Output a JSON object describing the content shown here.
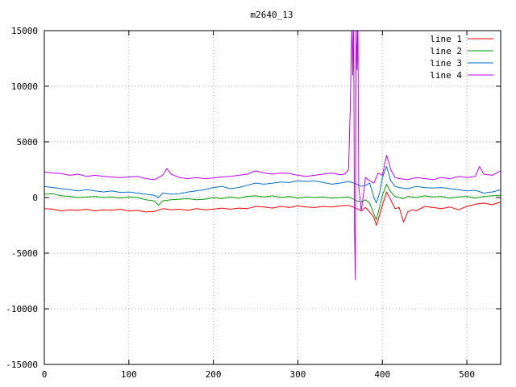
{
  "chart_data": {
    "type": "line",
    "title": "m2640_13",
    "xlabel": "",
    "ylabel": "",
    "xlim": [
      0,
      540
    ],
    "ylim": [
      -15000,
      15000
    ],
    "x_ticks": [
      0,
      100,
      200,
      300,
      400,
      500
    ],
    "y_ticks": [
      -15000,
      -10000,
      -5000,
      0,
      5000,
      10000,
      15000
    ],
    "grid": true,
    "legend_position": "top-right",
    "series": [
      {
        "name": "line 1",
        "color": "#ff0000",
        "points": [
          [
            0,
            -1000
          ],
          [
            10,
            -1050
          ],
          [
            20,
            -1200
          ],
          [
            30,
            -1100
          ],
          [
            40,
            -1150
          ],
          [
            50,
            -1050
          ],
          [
            60,
            -1200
          ],
          [
            70,
            -1100
          ],
          [
            80,
            -1150
          ],
          [
            90,
            -1050
          ],
          [
            100,
            -1200
          ],
          [
            110,
            -1150
          ],
          [
            120,
            -1300
          ],
          [
            130,
            -1250
          ],
          [
            140,
            -1000
          ],
          [
            150,
            -1100
          ],
          [
            160,
            -1050
          ],
          [
            170,
            -1150
          ],
          [
            180,
            -1000
          ],
          [
            190,
            -1100
          ],
          [
            200,
            -1050
          ],
          [
            210,
            -950
          ],
          [
            220,
            -1050
          ],
          [
            230,
            -950
          ],
          [
            240,
            -1000
          ],
          [
            250,
            -800
          ],
          [
            260,
            -850
          ],
          [
            270,
            -950
          ],
          [
            280,
            -800
          ],
          [
            290,
            -900
          ],
          [
            300,
            -750
          ],
          [
            310,
            -850
          ],
          [
            320,
            -900
          ],
          [
            330,
            -800
          ],
          [
            340,
            -850
          ],
          [
            350,
            -750
          ],
          [
            360,
            -700
          ],
          [
            370,
            -1000
          ],
          [
            375,
            -1200
          ],
          [
            380,
            -900
          ],
          [
            385,
            -1300
          ],
          [
            390,
            -1800
          ],
          [
            393,
            -2500
          ],
          [
            397,
            -1500
          ],
          [
            400,
            -700
          ],
          [
            405,
            500
          ],
          [
            410,
            -200
          ],
          [
            415,
            -1000
          ],
          [
            420,
            -900
          ],
          [
            425,
            -2200
          ],
          [
            430,
            -1300
          ],
          [
            435,
            -1100
          ],
          [
            440,
            -1200
          ],
          [
            450,
            -800
          ],
          [
            460,
            -900
          ],
          [
            470,
            -1000
          ],
          [
            480,
            -850
          ],
          [
            490,
            -1100
          ],
          [
            500,
            -800
          ],
          [
            510,
            -600
          ],
          [
            520,
            -500
          ],
          [
            530,
            -650
          ],
          [
            540,
            -400
          ]
        ]
      },
      {
        "name": "line 2",
        "color": "#00a000",
        "points": [
          [
            0,
            300
          ],
          [
            10,
            350
          ],
          [
            20,
            150
          ],
          [
            30,
            100
          ],
          [
            40,
            0
          ],
          [
            50,
            50
          ],
          [
            60,
            100
          ],
          [
            70,
            0
          ],
          [
            80,
            50
          ],
          [
            90,
            -50
          ],
          [
            100,
            50
          ],
          [
            110,
            0
          ],
          [
            120,
            -200
          ],
          [
            130,
            -300
          ],
          [
            135,
            -700
          ],
          [
            140,
            -300
          ],
          [
            150,
            -200
          ],
          [
            160,
            -150
          ],
          [
            170,
            -100
          ],
          [
            180,
            -200
          ],
          [
            190,
            -150
          ],
          [
            200,
            0
          ],
          [
            210,
            -100
          ],
          [
            220,
            50
          ],
          [
            230,
            -50
          ],
          [
            240,
            100
          ],
          [
            250,
            150
          ],
          [
            260,
            50
          ],
          [
            270,
            150
          ],
          [
            280,
            0
          ],
          [
            290,
            100
          ],
          [
            300,
            -50
          ],
          [
            310,
            50
          ],
          [
            320,
            0
          ],
          [
            330,
            50
          ],
          [
            340,
            -50
          ],
          [
            350,
            0
          ],
          [
            360,
            50
          ],
          [
            370,
            -300
          ],
          [
            375,
            -400
          ],
          [
            380,
            -200
          ],
          [
            385,
            -500
          ],
          [
            390,
            -1500
          ],
          [
            393,
            -2000
          ],
          [
            397,
            -800
          ],
          [
            400,
            200
          ],
          [
            405,
            1200
          ],
          [
            410,
            500
          ],
          [
            415,
            100
          ],
          [
            420,
            0
          ],
          [
            425,
            -100
          ],
          [
            430,
            100
          ],
          [
            440,
            0
          ],
          [
            450,
            150
          ],
          [
            460,
            50
          ],
          [
            470,
            100
          ],
          [
            480,
            -50
          ],
          [
            490,
            50
          ],
          [
            500,
            100
          ],
          [
            510,
            -50
          ],
          [
            520,
            100
          ],
          [
            530,
            150
          ],
          [
            540,
            200
          ]
        ]
      },
      {
        "name": "line 3",
        "color": "#0070d0",
        "points": [
          [
            0,
            1000
          ],
          [
            10,
            900
          ],
          [
            20,
            800
          ],
          [
            30,
            700
          ],
          [
            40,
            600
          ],
          [
            50,
            700
          ],
          [
            60,
            600
          ],
          [
            70,
            500
          ],
          [
            80,
            600
          ],
          [
            90,
            450
          ],
          [
            100,
            500
          ],
          [
            110,
            400
          ],
          [
            120,
            300
          ],
          [
            130,
            200
          ],
          [
            135,
            0
          ],
          [
            140,
            400
          ],
          [
            150,
            300
          ],
          [
            160,
            350
          ],
          [
            170,
            500
          ],
          [
            180,
            600
          ],
          [
            190,
            700
          ],
          [
            200,
            900
          ],
          [
            210,
            1000
          ],
          [
            220,
            800
          ],
          [
            230,
            900
          ],
          [
            240,
            1100
          ],
          [
            250,
            1300
          ],
          [
            260,
            1200
          ],
          [
            270,
            1300
          ],
          [
            280,
            1400
          ],
          [
            290,
            1350
          ],
          [
            300,
            1500
          ],
          [
            310,
            1450
          ],
          [
            320,
            1500
          ],
          [
            330,
            1350
          ],
          [
            340,
            1200
          ],
          [
            350,
            1300
          ],
          [
            360,
            1450
          ],
          [
            370,
            1200
          ],
          [
            375,
            1000
          ],
          [
            380,
            1100
          ],
          [
            385,
            1300
          ],
          [
            390,
            0
          ],
          [
            393,
            -500
          ],
          [
            397,
            500
          ],
          [
            400,
            1800
          ],
          [
            405,
            2800
          ],
          [
            410,
            1500
          ],
          [
            415,
            1000
          ],
          [
            420,
            900
          ],
          [
            430,
            800
          ],
          [
            440,
            1000
          ],
          [
            450,
            900
          ],
          [
            460,
            850
          ],
          [
            470,
            900
          ],
          [
            480,
            800
          ],
          [
            490,
            700
          ],
          [
            500,
            600
          ],
          [
            510,
            650
          ],
          [
            520,
            400
          ],
          [
            530,
            500
          ],
          [
            540,
            700
          ]
        ]
      },
      {
        "name": "line 4",
        "color": "#c000ff",
        "points": [
          [
            0,
            2300
          ],
          [
            10,
            2200
          ],
          [
            20,
            2150
          ],
          [
            30,
            2000
          ],
          [
            40,
            2100
          ],
          [
            50,
            1900
          ],
          [
            60,
            2000
          ],
          [
            70,
            1900
          ],
          [
            80,
            1850
          ],
          [
            90,
            1800
          ],
          [
            100,
            1850
          ],
          [
            110,
            1900
          ],
          [
            120,
            1700
          ],
          [
            130,
            1600
          ],
          [
            140,
            2000
          ],
          [
            145,
            2600
          ],
          [
            150,
            2100
          ],
          [
            160,
            1800
          ],
          [
            170,
            1700
          ],
          [
            180,
            1800
          ],
          [
            190,
            1700
          ],
          [
            200,
            1750
          ],
          [
            210,
            1850
          ],
          [
            220,
            1900
          ],
          [
            230,
            2000
          ],
          [
            240,
            2100
          ],
          [
            250,
            2400
          ],
          [
            260,
            2200
          ],
          [
            270,
            2100
          ],
          [
            280,
            2200
          ],
          [
            290,
            2150
          ],
          [
            300,
            2000
          ],
          [
            310,
            1900
          ],
          [
            320,
            2000
          ],
          [
            330,
            2100
          ],
          [
            340,
            2200
          ],
          [
            350,
            2050
          ],
          [
            355,
            2100
          ],
          [
            360,
            2500
          ],
          [
            362,
            8000
          ],
          [
            364,
            16000
          ],
          [
            365,
            11000
          ],
          [
            366,
            16000
          ],
          [
            367,
            -3000
          ],
          [
            368,
            -7400
          ],
          [
            369,
            16000
          ],
          [
            370,
            11500
          ],
          [
            371,
            16000
          ],
          [
            372,
            1000
          ],
          [
            375,
            -1200
          ],
          [
            378,
            500
          ],
          [
            380,
            1800
          ],
          [
            385,
            1500
          ],
          [
            390,
            1300
          ],
          [
            395,
            2200
          ],
          [
            400,
            2000
          ],
          [
            405,
            3800
          ],
          [
            410,
            2500
          ],
          [
            415,
            1800
          ],
          [
            420,
            1700
          ],
          [
            430,
            1600
          ],
          [
            440,
            1800
          ],
          [
            450,
            1700
          ],
          [
            460,
            1600
          ],
          [
            470,
            1800
          ],
          [
            480,
            1700
          ],
          [
            490,
            1900
          ],
          [
            500,
            1800
          ],
          [
            510,
            1900
          ],
          [
            515,
            2800
          ],
          [
            520,
            2100
          ],
          [
            530,
            2000
          ],
          [
            540,
            2400
          ]
        ]
      }
    ]
  }
}
